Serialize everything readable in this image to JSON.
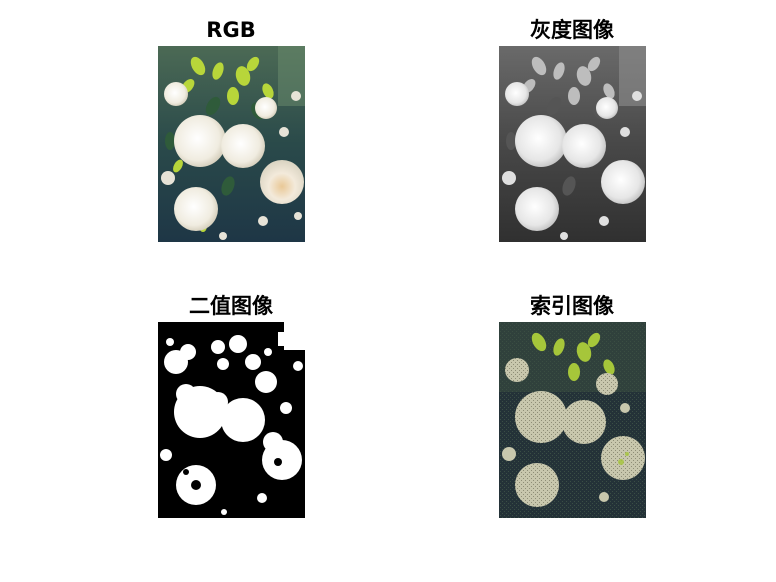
{
  "figure": {
    "panels": [
      {
        "id": "rgb",
        "title": "RGB",
        "mode": "rgb"
      },
      {
        "id": "gray",
        "title": "灰度图像",
        "mode": "gray"
      },
      {
        "id": "binary",
        "title": "二值图像",
        "mode": "binary"
      },
      {
        "id": "indexed",
        "title": "索引图像",
        "mode": "indexed"
      }
    ]
  },
  "colors": {
    "rgb_bg_top": "#3f5a4a",
    "rgb_bg_bottom": "#1f3845",
    "rgb_flower": "#f1ede2",
    "rgb_leaf": "#b8d63a",
    "gray_bg_top": "#6d6d6d",
    "gray_bg_bottom": "#2d2d2d",
    "gray_flower": "#e6e6e6",
    "indexed_bg": "#243238",
    "indexed_flower": "#c8c7ad",
    "indexed_leaf": "#a6c63a",
    "binary_black": "#000000",
    "binary_white": "#ffffff"
  }
}
